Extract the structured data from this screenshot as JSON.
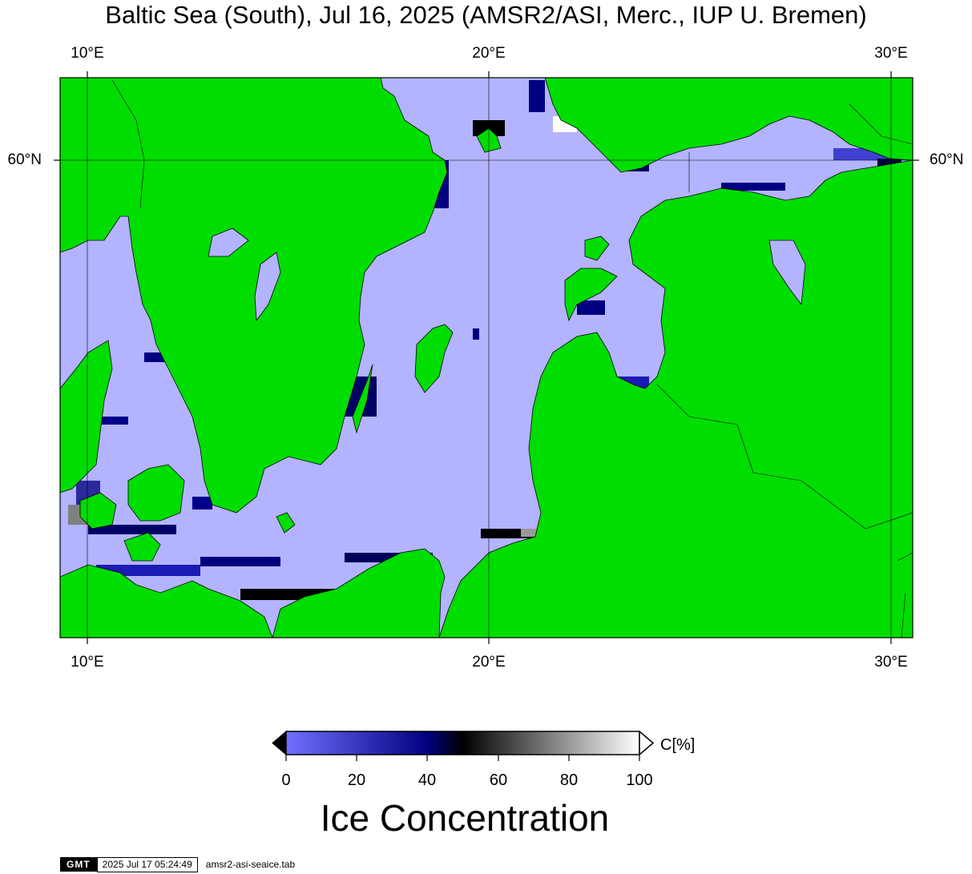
{
  "title": "Baltic Sea (South), Jul 16, 2025 (AMSR2/ASI, Merc., IUP U. Bremen)",
  "map": {
    "projection": "Mercator",
    "lon_range": [
      9.3,
      30.5
    ],
    "lat_range": [
      53.6,
      60.0
    ],
    "lon_ticks_top": [
      "10°E",
      "20°E",
      "30°E"
    ],
    "lon_ticks_bottom": [
      "10°E",
      "20°E",
      "30°E"
    ],
    "lat_ticks_left": [
      "60°N"
    ],
    "lat_ticks_right": [
      "60°N"
    ],
    "colors": {
      "land": "#00dd00",
      "open_water": "#b3b3ff",
      "coast": "#000000",
      "no_data": "#808080"
    }
  },
  "colorbar": {
    "ticks": [
      "0",
      "20",
      "40",
      "60",
      "80",
      "100"
    ],
    "unit": "C[%]",
    "title": "Ice Concentration",
    "stops": [
      "#7070ff",
      "#000080",
      "#000000",
      "#ffffff"
    ]
  },
  "footer": {
    "logo": "GMT",
    "timestamp": "2025 Jul 17 05:24:49",
    "command": "amsr2-asi-seaice.tab"
  }
}
